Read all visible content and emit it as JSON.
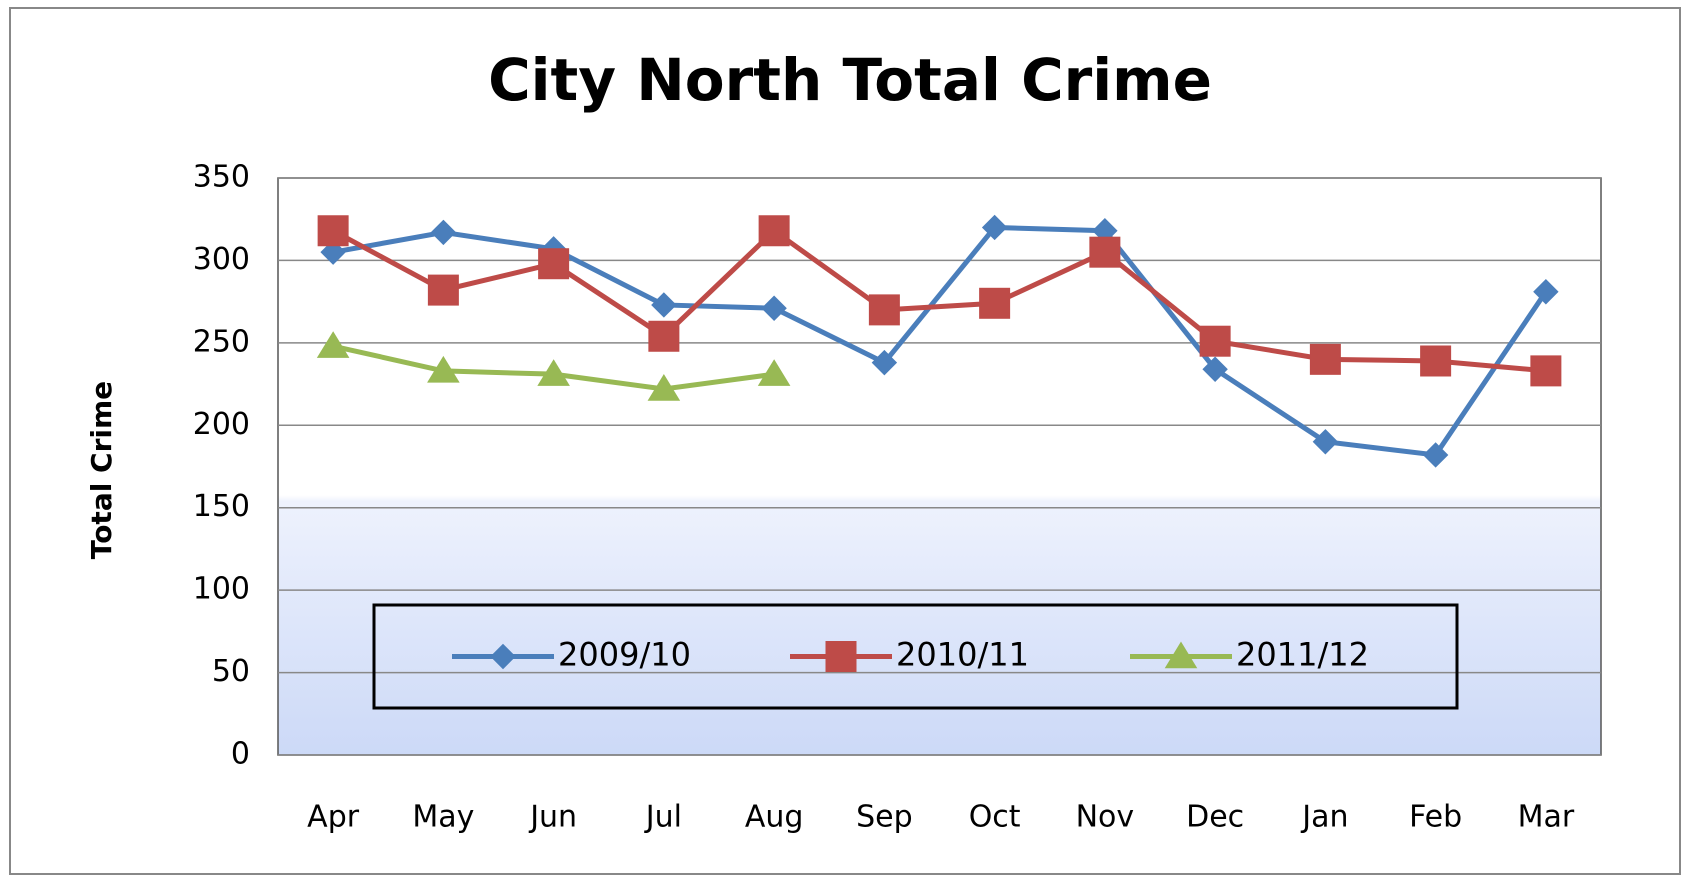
{
  "chart_data": {
    "type": "line",
    "title": "City North Total Crime",
    "y_label": "Total Crime",
    "categories": [
      "Apr",
      "May",
      "Jun",
      "Jul",
      "Aug",
      "Sep",
      "Oct",
      "Nov",
      "Dec",
      "Jan",
      "Feb",
      "Mar"
    ],
    "series": [
      {
        "name": "2009/10",
        "color": "#4a7ebb",
        "marker": "diamond",
        "values": [
          305,
          317,
          307,
          273,
          271,
          238,
          320,
          318,
          234,
          190,
          182,
          281
        ]
      },
      {
        "name": "2010/11",
        "color": "#be4b48",
        "marker": "square",
        "values": [
          318,
          282,
          298,
          254,
          318,
          270,
          274,
          305,
          251,
          240,
          239,
          233
        ]
      },
      {
        "name": "2011/12",
        "color": "#98b954",
        "marker": "triangle",
        "values": [
          248,
          233,
          231,
          222,
          231,
          null,
          null,
          null,
          null,
          null,
          null,
          null
        ]
      }
    ],
    "ylim": [
      0,
      350
    ],
    "yticks": [
      0,
      50,
      100,
      150,
      200,
      250,
      300,
      350
    ],
    "grid": true,
    "legend": "bottom"
  }
}
